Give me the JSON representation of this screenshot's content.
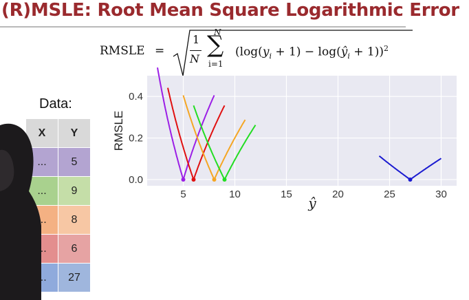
{
  "slide": {
    "title": "(R)MSLE: Root Mean Square Logarithmic Error"
  },
  "formula": {
    "lhs": "RMSLE",
    "eq": "=",
    "frac_num": "1",
    "frac_den": "N",
    "sum_upper": "N",
    "sum_lower": "i=1",
    "body_parts": [
      "(log(",
      "y",
      "i",
      " + 1) − log(",
      "ŷ",
      "i",
      " + 1))",
      "2"
    ]
  },
  "data_table": {
    "label": "Data:",
    "headers": [
      "X",
      "Y"
    ],
    "rows": [
      {
        "x": "...",
        "y": "5",
        "x_color": "#b3a4d1",
        "y_color": "#b3a4d1"
      },
      {
        "x": "...",
        "y": "9",
        "x_color": "#a9d18e",
        "y_color": "#c5dea8"
      },
      {
        "x": "...",
        "y": "8",
        "x_color": "#f4b183",
        "y_color": "#f7c7a4"
      },
      {
        "x": "...",
        "y": "6",
        "x_color": "#e38e8e",
        "y_color": "#e6a3a3"
      },
      {
        "x": "...",
        "y": "27",
        "x_color": "#8faadc",
        "y_color": "#9fb6dd"
      }
    ]
  },
  "chart_data": {
    "type": "line",
    "xlabel": "ŷ",
    "ylabel": "RMSLE",
    "xlim": [
      1.5,
      31.5
    ],
    "ylim": [
      -0.03,
      0.5
    ],
    "x_ticks": [
      5,
      10,
      15,
      20,
      25,
      30
    ],
    "y_ticks": [
      0.0,
      0.2,
      0.4
    ],
    "x_tick_labels": [
      "5",
      "10",
      "15",
      "20",
      "25",
      "30"
    ],
    "y_tick_labels": [
      "0.0",
      "0.2",
      "0.4"
    ],
    "grid": true,
    "series": [
      {
        "target": 5,
        "color": "#9b1ee6",
        "x_range": [
          2.5,
          8
        ]
      },
      {
        "target": 6,
        "color": "#e01010",
        "x_range": [
          3.5,
          9
        ]
      },
      {
        "target": 8,
        "color": "#f5a623",
        "x_range": [
          5,
          11
        ]
      },
      {
        "target": 9,
        "color": "#22dd22",
        "x_range": [
          6,
          12
        ]
      },
      {
        "target": 27,
        "color": "#1a1ad0",
        "x_range": [
          24,
          30
        ]
      }
    ]
  }
}
